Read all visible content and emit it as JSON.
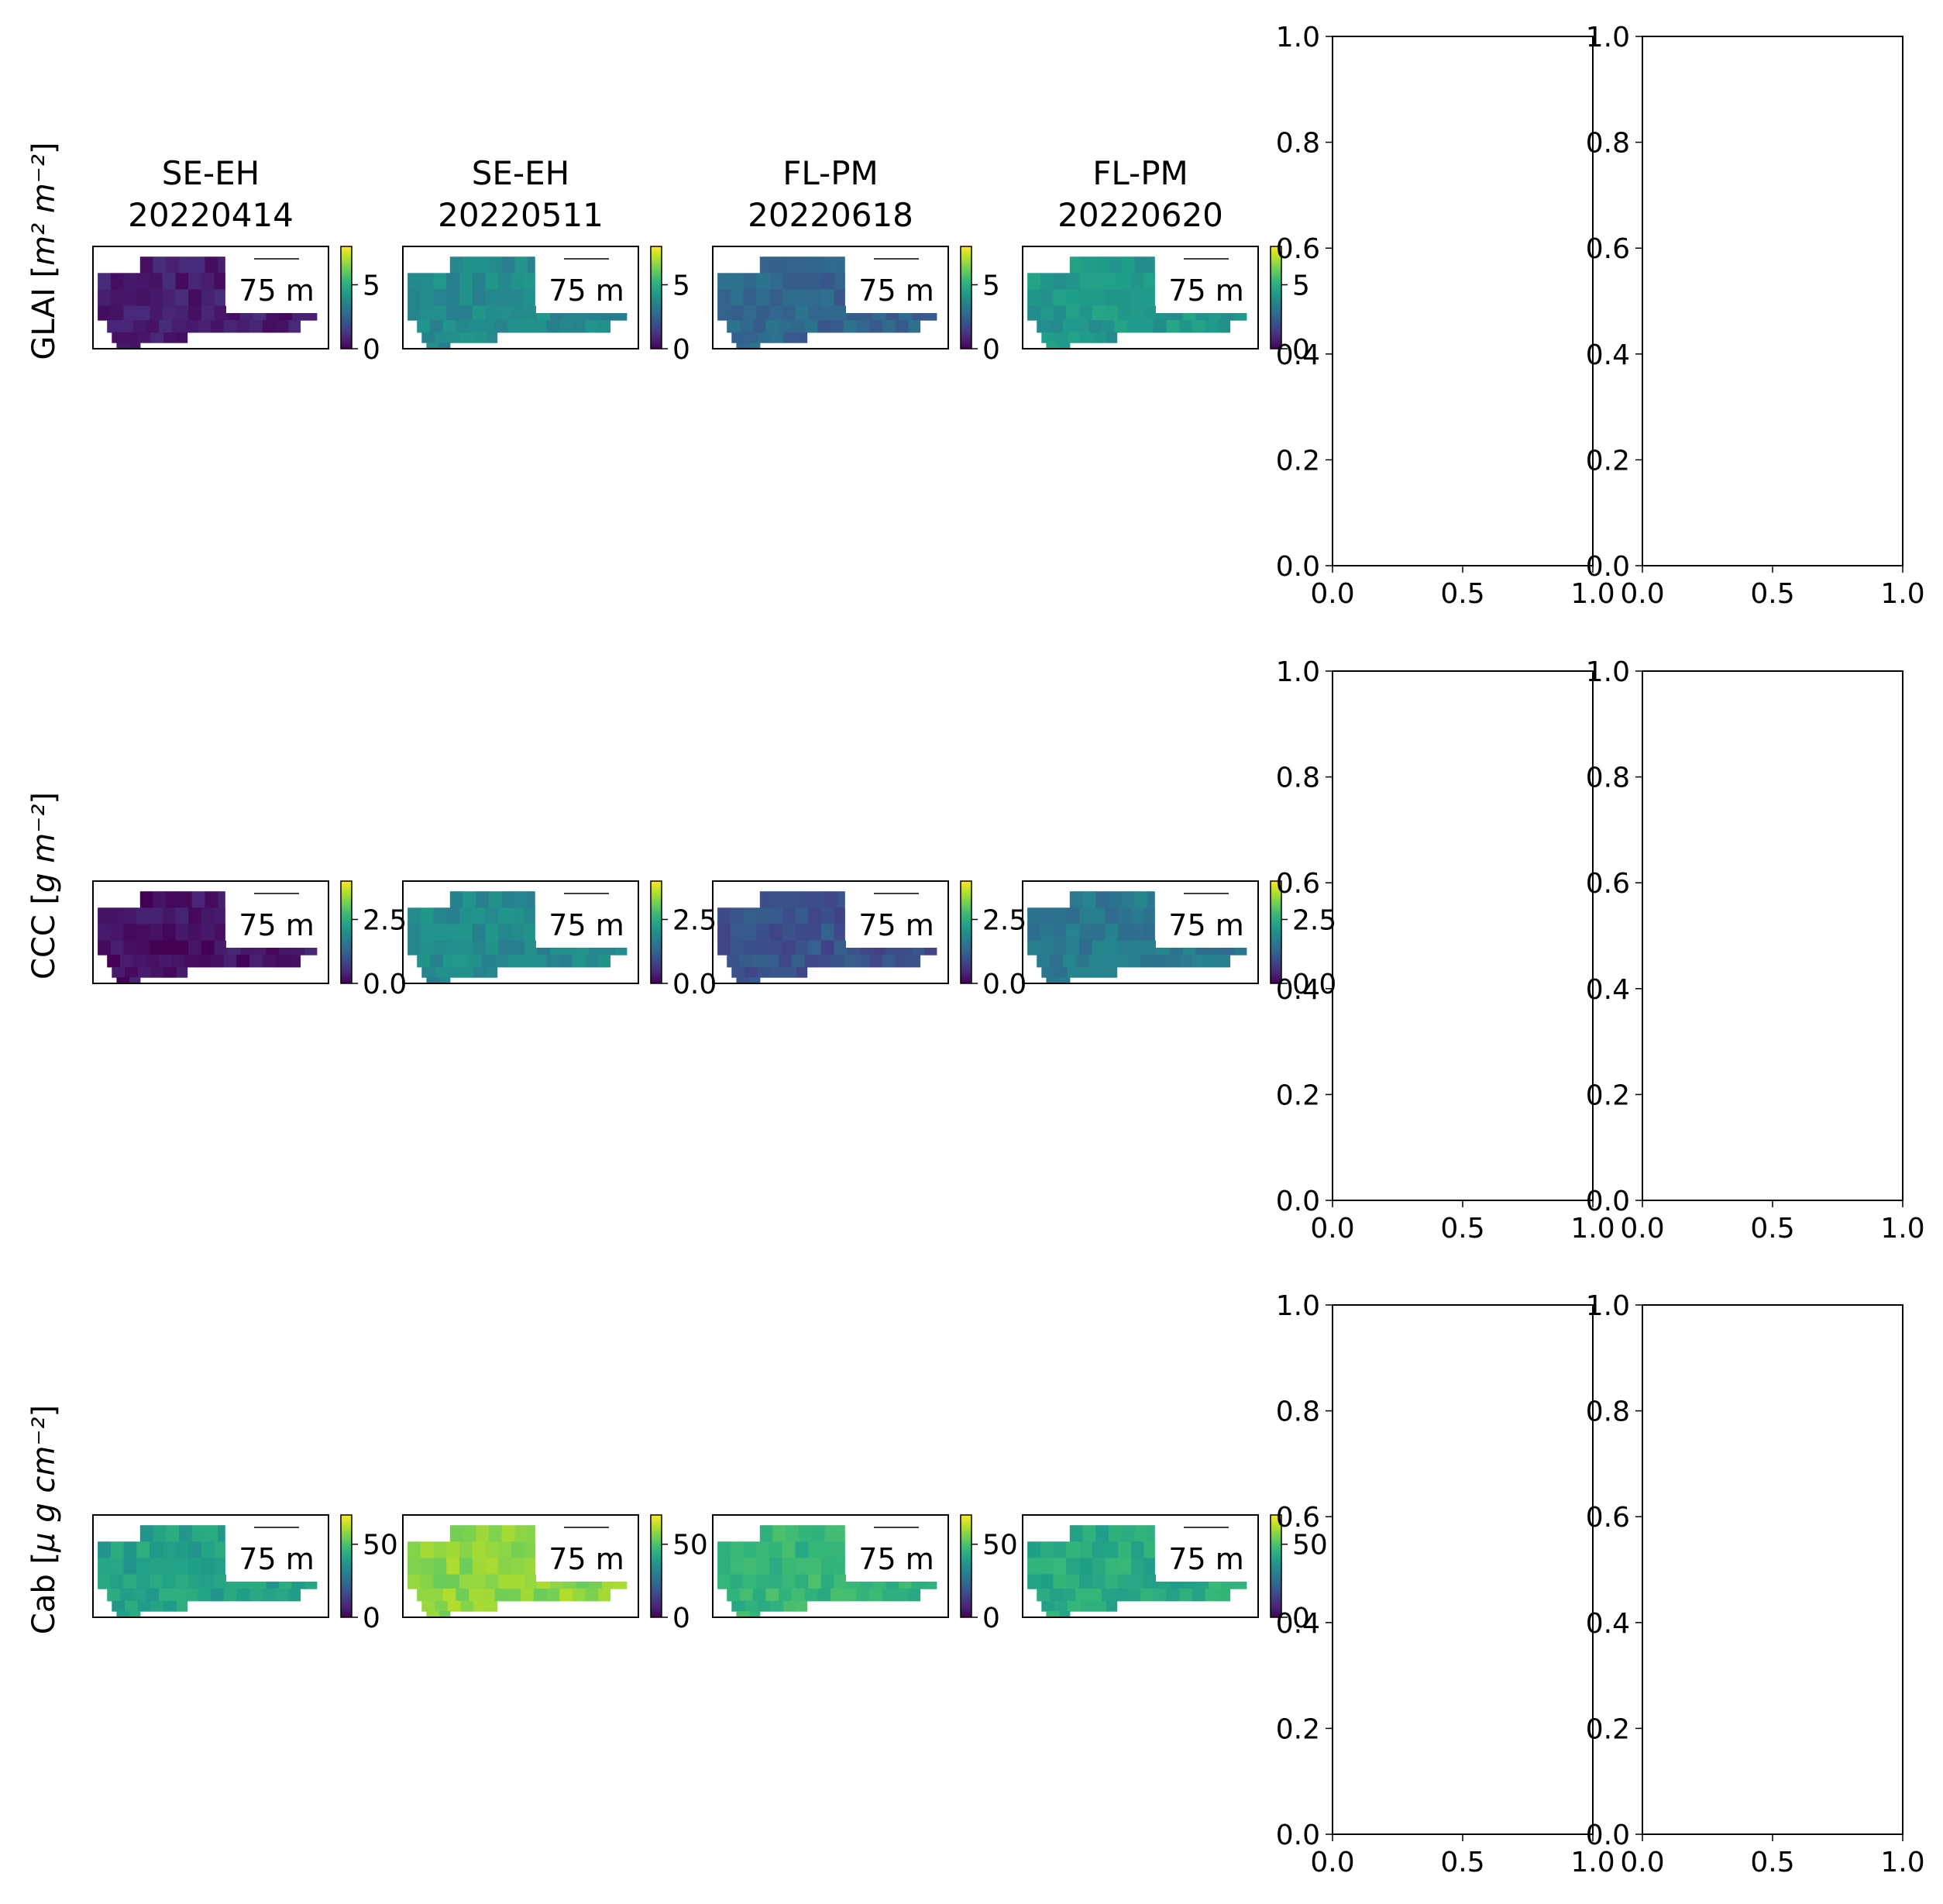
{
  "colors": {
    "viridis": [
      "#440154",
      "#482878",
      "#3e4989",
      "#31688e",
      "#26828e",
      "#1f9e89",
      "#35b779",
      "#6ece58",
      "#b5de2b",
      "#fde725"
    ],
    "axis": "#000000",
    "background": "#ffffff"
  },
  "chart_data": {
    "type": "heatmap",
    "columns": [
      {
        "site": "SE-EH",
        "date": "20220414"
      },
      {
        "site": "SE-EH",
        "date": "20220511"
      },
      {
        "site": "FL-PM",
        "date": "20220618"
      },
      {
        "site": "FL-PM",
        "date": "20220620"
      }
    ],
    "scale_bar_label": "75 m",
    "rows": [
      {
        "ylabel_text": "GLAI [",
        "ylabel_math": "m² m⁻²",
        "ylabel_close": "]",
        "colorbar_ticks": [
          "0",
          "5"
        ],
        "colorbar_tick_values": [
          0,
          5
        ],
        "vmin": 0,
        "vmax": 8,
        "panel_mean_values": [
          0.6,
          3.8,
          2.6,
          4.3
        ]
      },
      {
        "ylabel_text": "CCC [",
        "ylabel_math": "g m⁻²",
        "ylabel_close": "]",
        "colorbar_ticks": [
          "0.0",
          "2.5"
        ],
        "colorbar_tick_values": [
          0,
          2.5
        ],
        "vmin": 0,
        "vmax": 4,
        "panel_mean_values": [
          0.2,
          1.9,
          1.0,
          1.6
        ]
      },
      {
        "ylabel_text": "Cab [",
        "ylabel_math": "μ g cm⁻²",
        "ylabel_close": "]",
        "colorbar_ticks": [
          "0",
          "50"
        ],
        "colorbar_tick_values": [
          0,
          50
        ],
        "vmin": 0,
        "vmax": 70,
        "panel_mean_values": [
          40,
          58,
          46,
          43
        ]
      }
    ],
    "empty_axes": {
      "xlim": [
        0,
        1
      ],
      "ylim": [
        0,
        1
      ],
      "xticks": [
        "0.0",
        "0.5",
        "1.0"
      ],
      "yticks": [
        "0.0",
        "0.2",
        "0.4",
        "0.6",
        "0.8",
        "1.0"
      ],
      "grid": false,
      "count_per_row": 2
    }
  }
}
